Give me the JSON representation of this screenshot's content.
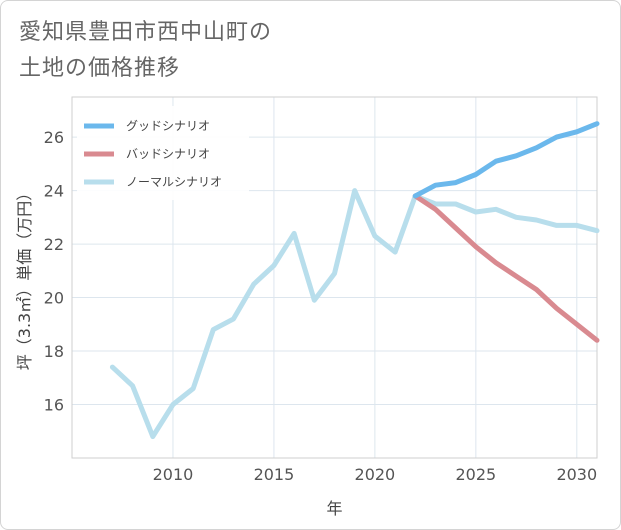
{
  "title_line1": "愛知県豊田市西中山町の",
  "title_line2": "土地の価格推移",
  "chart_data": {
    "type": "line",
    "xlabel": "年",
    "ylabel": "坪（3.3㎡）単価（万円）",
    "xlim": [
      2005.0,
      2031.0
    ],
    "ylim": [
      14.0,
      27.5
    ],
    "x_ticks": [
      2010,
      2015,
      2020,
      2025,
      2030
    ],
    "y_ticks": [
      16,
      18,
      20,
      22,
      24,
      26
    ],
    "grid": true,
    "legend_position": "top-left",
    "series": [
      {
        "name": "グッドシナリオ",
        "color": "#6bb8ec",
        "x": [
          2022,
          2023,
          2024,
          2025,
          2026,
          2027,
          2028,
          2029,
          2030,
          2031
        ],
        "values": [
          23.8,
          24.2,
          24.3,
          24.6,
          25.1,
          25.3,
          25.6,
          26.0,
          26.2,
          26.5
        ]
      },
      {
        "name": "バッドシナリオ",
        "color": "#d98a90",
        "x": [
          2022,
          2023,
          2024,
          2025,
          2026,
          2027,
          2028,
          2029,
          2030,
          2031
        ],
        "values": [
          23.8,
          23.3,
          22.6,
          21.9,
          21.3,
          20.8,
          20.3,
          19.6,
          19.0,
          18.4
        ]
      },
      {
        "name": "ノーマルシナリオ",
        "color": "#b8deec",
        "x": [
          2007,
          2008,
          2009,
          2010,
          2011,
          2012,
          2013,
          2014,
          2015,
          2016,
          2017,
          2018,
          2019,
          2020,
          2021,
          2022,
          2023,
          2024,
          2025,
          2026,
          2027,
          2028,
          2029,
          2030,
          2031
        ],
        "values": [
          17.4,
          16.7,
          14.8,
          16.0,
          16.6,
          18.8,
          19.2,
          20.5,
          21.2,
          22.4,
          19.9,
          20.9,
          24.0,
          22.3,
          21.7,
          23.8,
          23.5,
          23.5,
          23.2,
          23.3,
          23.0,
          22.9,
          22.7,
          22.7,
          22.5
        ]
      }
    ]
  }
}
